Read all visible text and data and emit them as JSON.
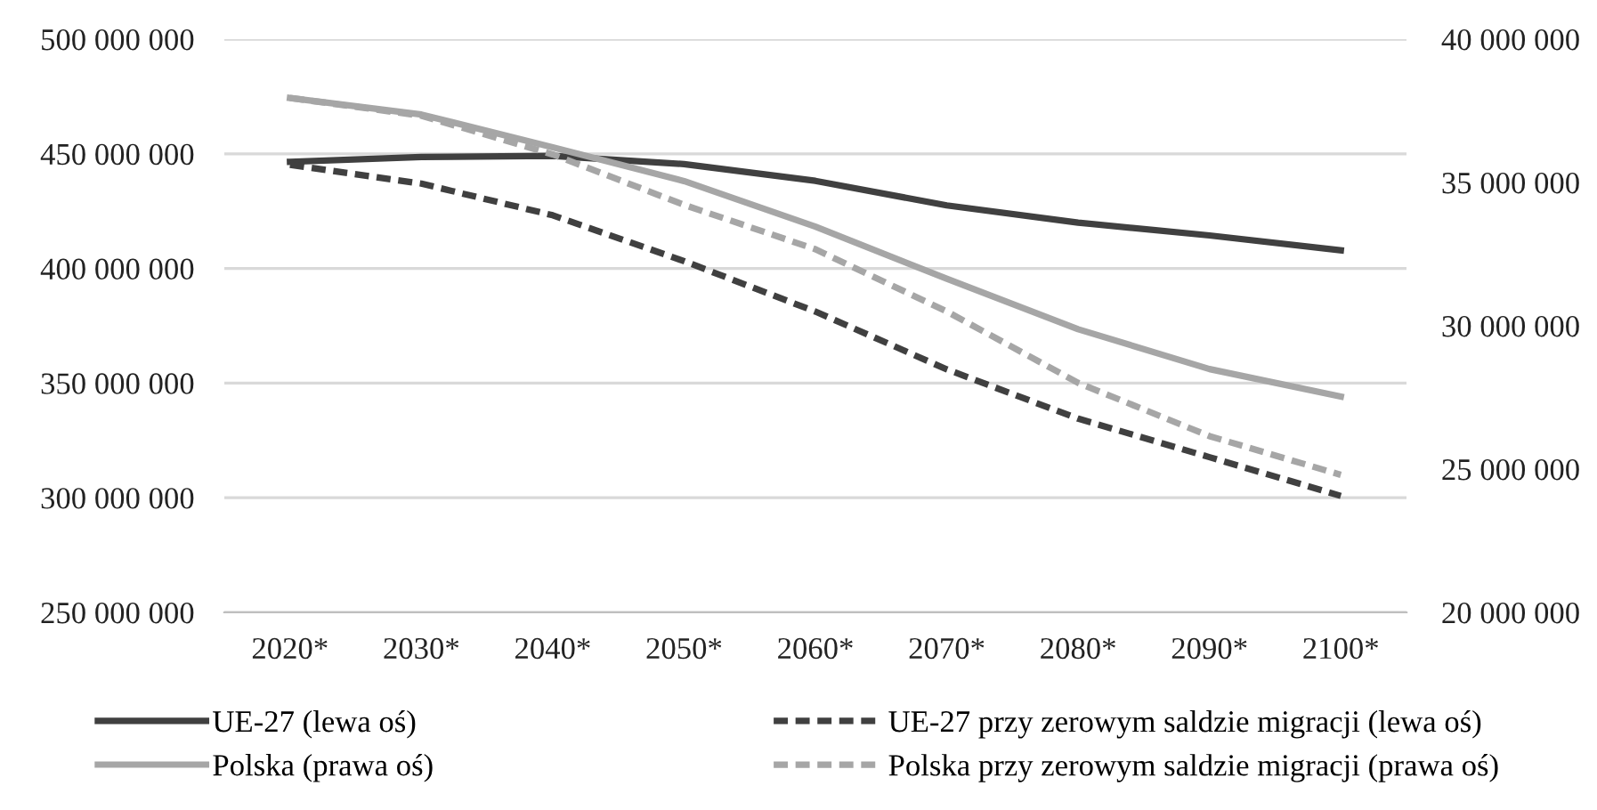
{
  "chart_data": {
    "type": "line",
    "categories": [
      "2020*",
      "2030*",
      "2040*",
      "2050*",
      "2060*",
      "2070*",
      "2080*",
      "2090*",
      "2100*"
    ],
    "series": [
      {
        "name": "UE-27 (lewa oś)",
        "color": "#404040",
        "line_style": "solid",
        "values": [
          446500000,
          448600000,
          449100000,
          445500000,
          438200000,
          427500000,
          420000000,
          414400000,
          407900000
        ]
      },
      {
        "name": "UE-27 przy zerowym saldzie migracji (lewa oś)",
        "color": "#404040",
        "line_style": "dashed",
        "values": [
          445200000,
          437000000,
          423200000,
          403200000,
          381200000,
          356000000,
          334500000,
          317700000,
          300800000
        ]
      },
      {
        "name": "Polska (prawa oś)",
        "color": "#a6a6a6",
        "line_style": "solid",
        "axis": "y2",
        "values": [
          37950000,
          37370000,
          36230000,
          35050000,
          33460000,
          31640000,
          29880000,
          28490000,
          27530000
        ]
      },
      {
        "name": "Polska przy zerowym saldzie migracji (prawa oś)",
        "color": "#a6a6a6",
        "line_style": "dashed",
        "axis": "y2",
        "values": [
          37950000,
          37330000,
          35980000,
          34220000,
          32670000,
          30500000,
          28010000,
          26150000,
          24800000
        ]
      }
    ],
    "ylim": [
      250000000,
      500000000
    ],
    "yticks": [
      {
        "value": 250000000,
        "label": "250 000 000"
      },
      {
        "value": 300000000,
        "label": "300 000 000"
      },
      {
        "value": 350000000,
        "label": "350 000 000"
      },
      {
        "value": 400000000,
        "label": "400 000 000"
      },
      {
        "value": 450000000,
        "label": "450 000 000"
      },
      {
        "value": 500000000,
        "label": "500 000 000"
      }
    ],
    "y2lim": [
      20000000,
      40000000
    ],
    "y2ticks": [
      {
        "value": 20000000,
        "label": "20 000 000"
      },
      {
        "value": 25000000,
        "label": "25 000 000"
      },
      {
        "value": 30000000,
        "label": "30 000 000"
      },
      {
        "value": 35000000,
        "label": "35 000 000"
      },
      {
        "value": 40000000,
        "label": "40 000 000"
      }
    ],
    "grid": "y",
    "legend": "bottom",
    "marker": "none"
  }
}
